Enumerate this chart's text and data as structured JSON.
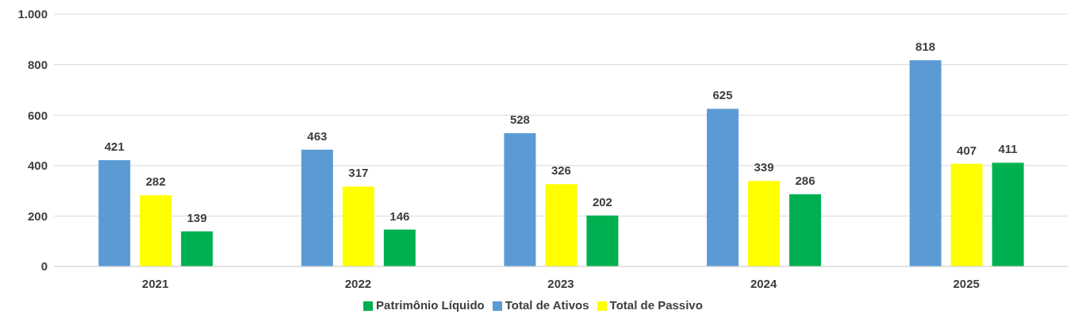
{
  "chart_data": {
    "type": "bar",
    "categories": [
      "2021",
      "2022",
      "2023",
      "2024",
      "2025"
    ],
    "series": [
      {
        "name": "Total de Ativos",
        "color": "#5b9bd5",
        "values": [
          421,
          463,
          528,
          625,
          818
        ]
      },
      {
        "name": "Total de Passivo",
        "color": "#ffff00",
        "values": [
          282,
          317,
          326,
          339,
          407
        ]
      },
      {
        "name": "Patrimônio Líquido",
        "color": "#00b050",
        "values": [
          139,
          146,
          202,
          286,
          411
        ]
      }
    ],
    "ylim": [
      0,
      1000
    ],
    "yticks": [
      0,
      200,
      400,
      600,
      800,
      {
        "value": 1000,
        "label": "1.000"
      }
    ],
    "grid": "y",
    "legend": "bottom",
    "data_labels": true
  }
}
